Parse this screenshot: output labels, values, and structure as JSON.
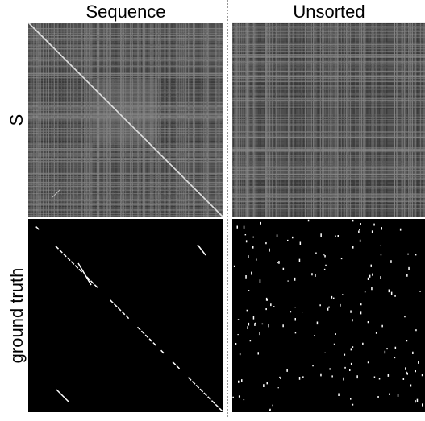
{
  "columns": [
    "Sequence",
    "Unsorted"
  ],
  "rows": [
    "S",
    "ground truth"
  ]
}
